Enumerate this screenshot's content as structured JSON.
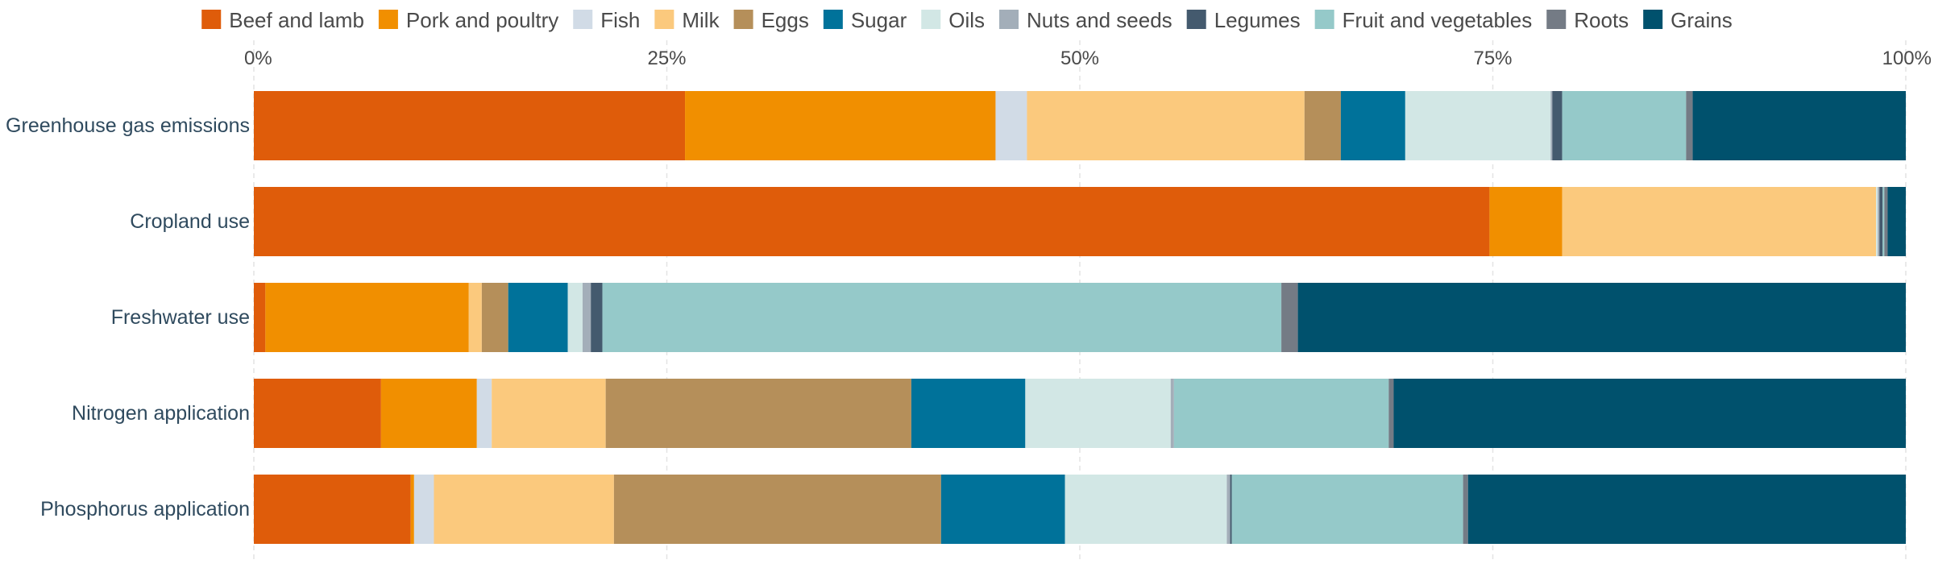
{
  "chart_data": {
    "type": "bar",
    "orientation": "horizontal",
    "stacked": true,
    "normalized_percent": true,
    "title": "",
    "xlabel": "",
    "ylabel": "",
    "xlim": [
      0,
      100
    ],
    "x_ticks": [
      "0%",
      "25%",
      "50%",
      "75%",
      "100%"
    ],
    "x_ticks_values": [
      0,
      25,
      50,
      75,
      100
    ],
    "legend_position": "top",
    "grid": true,
    "categories": [
      "Greenhouse gas emissions",
      "Cropland use",
      "Freshwater use",
      "Nitrogen application",
      "Phosphorus application"
    ],
    "series": [
      {
        "name": "Beef and lamb",
        "color": "#df5c0a",
        "values": [
          26.1,
          74.8,
          0.7,
          7.7,
          9.5
        ]
      },
      {
        "name": "Pork and poultry",
        "color": "#f18f00",
        "values": [
          18.8,
          4.4,
          12.3,
          5.8,
          0.2
        ]
      },
      {
        "name": "Fish",
        "color": "#d1dbe6",
        "values": [
          1.9,
          0.0,
          0.0,
          0.9,
          1.2
        ]
      },
      {
        "name": "Milk",
        "color": "#fbc97d",
        "values": [
          16.8,
          19.0,
          0.8,
          6.9,
          10.9
        ]
      },
      {
        "name": "Eggs",
        "color": "#b58f5a",
        "values": [
          2.2,
          0.0,
          1.6,
          18.5,
          19.8
        ]
      },
      {
        "name": "Sugar",
        "color": "#00729a",
        "values": [
          3.9,
          0.0,
          3.6,
          6.9,
          7.5
        ]
      },
      {
        "name": "Oils",
        "color": "#d2e7e5",
        "values": [
          8.8,
          0.1,
          0.9,
          8.8,
          9.8
        ]
      },
      {
        "name": "Nuts and seeds",
        "color": "#a3aeb9",
        "values": [
          0.1,
          0.1,
          0.5,
          0.2,
          0.2
        ]
      },
      {
        "name": "Legumes",
        "color": "#445a6e",
        "values": [
          0.6,
          0.2,
          0.7,
          0.0,
          0.1
        ]
      },
      {
        "name": "Fruit and vegetables",
        "color": "#95c9c9",
        "values": [
          7.5,
          0.1,
          41.1,
          13.0,
          14.0
        ]
      },
      {
        "name": "Roots",
        "color": "#747b85",
        "values": [
          0.4,
          0.2,
          1.0,
          0.3,
          0.3
        ]
      },
      {
        "name": "Grains",
        "color": "#00516d",
        "values": [
          12.9,
          1.1,
          36.8,
          31.0,
          26.5
        ]
      }
    ]
  }
}
